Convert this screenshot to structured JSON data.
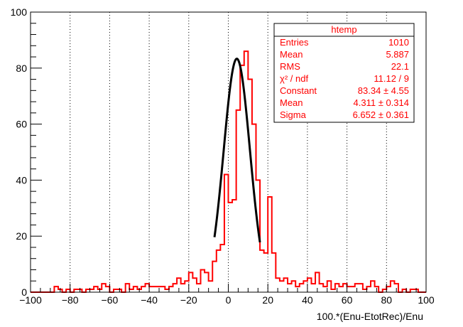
{
  "chart_data": {
    "type": "histogram",
    "xlabel": "100.*(Enu-EtotRec)/Enu",
    "ylabel": "",
    "xlim": [
      -100,
      100
    ],
    "ylim": [
      0,
      100
    ],
    "x_ticks": [
      "−100",
      "−80",
      "−60",
      "−40",
      "−20",
      "0",
      "20",
      "40",
      "60",
      "80",
      "100"
    ],
    "y_ticks": [
      "0",
      "20",
      "40",
      "60",
      "80",
      "100"
    ],
    "grid": "vertical-dotted",
    "bin_width": 2,
    "bin_edges_start": -100,
    "bin_counts": [
      0,
      0,
      0,
      0,
      0,
      0,
      2,
      1,
      0,
      1,
      0,
      1,
      1,
      0,
      1,
      1,
      2,
      1,
      3,
      2,
      0,
      1,
      1,
      0,
      3,
      1,
      2,
      1,
      2,
      3,
      2,
      2,
      2,
      2,
      1,
      2,
      3,
      5,
      3,
      4,
      7,
      5,
      3,
      8,
      7,
      4,
      11,
      15,
      17,
      42,
      32,
      33,
      65,
      81,
      86,
      76,
      60,
      40,
      15,
      14,
      34,
      14,
      5,
      4,
      5,
      3,
      4,
      2,
      3,
      4,
      5,
      3,
      7,
      3,
      2,
      4,
      1,
      3,
      2,
      3,
      2,
      2,
      3,
      3,
      1,
      2,
      4,
      2,
      0,
      1,
      2,
      4,
      3,
      0,
      1,
      0,
      1,
      1,
      0,
      0
    ],
    "histogram_color": "#ff0000",
    "fit": {
      "name": "gaussian fit",
      "color": "#000000",
      "constant": 83.34,
      "mean": 4.311,
      "sigma": 6.652,
      "x_range": [
        -7,
        16
      ]
    }
  },
  "stats_box": {
    "title": "htemp",
    "rows": [
      {
        "label": "Entries",
        "value": "1010"
      },
      {
        "label": "Mean",
        "value": "5.887"
      },
      {
        "label": "RMS",
        "value": "22.1"
      },
      {
        "label": "χ² / ndf",
        "value": "11.12 / 9"
      },
      {
        "label": "Constant",
        "value": "83.34 ± 4.55"
      },
      {
        "label": "Mean",
        "value": "4.311 ± 0.314"
      },
      {
        "label": "Sigma",
        "value": "6.652 ± 0.361"
      }
    ],
    "text_color": "#ff0000"
  }
}
